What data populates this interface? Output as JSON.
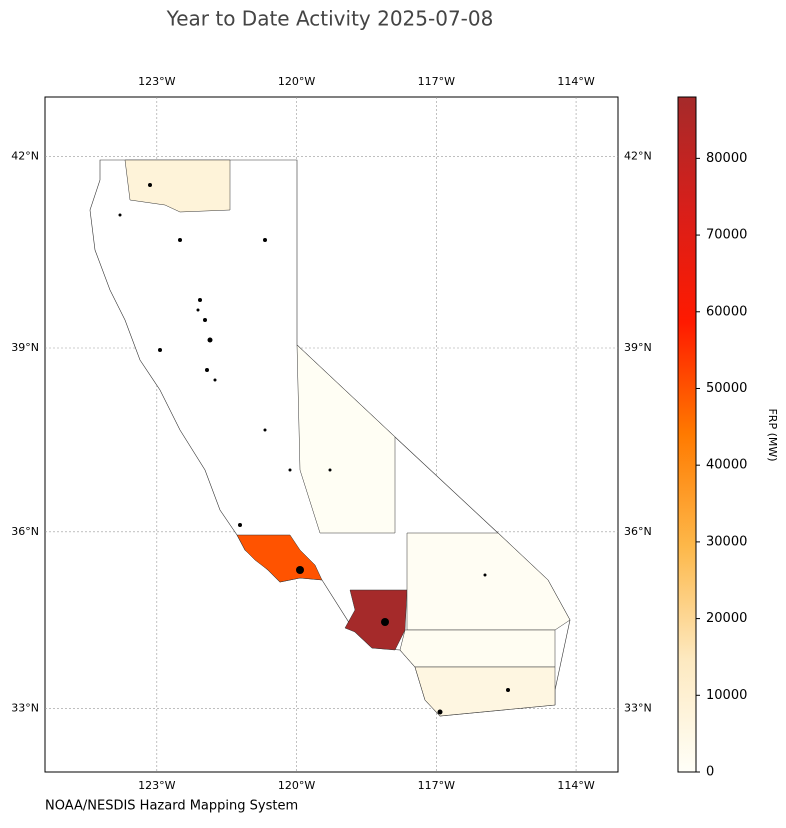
{
  "chart_data": {
    "type": "choropleth-map",
    "title": "Year to Date Activity 2025-07-08",
    "source": "NOAA/NESDIS Hazard Mapping System",
    "colorbar_label": "FRP (MW)",
    "xlim": [
      -125.4,
      -113.1
    ],
    "ylim": [
      31.9,
      42.9
    ],
    "xticks": [
      {
        "value": -123,
        "label": "123°W"
      },
      {
        "value": -120,
        "label": "120°W"
      },
      {
        "value": -117,
        "label": "117°W"
      },
      {
        "value": -114,
        "label": "114°W"
      }
    ],
    "yticks": [
      {
        "value": 33,
        "label": "33°N"
      },
      {
        "value": 36,
        "label": "36°N"
      },
      {
        "value": 39,
        "label": "39°N"
      },
      {
        "value": 42,
        "label": "42°N"
      }
    ],
    "clim": [
      0,
      88000
    ],
    "cticks": [
      0,
      10000,
      20000,
      30000,
      40000,
      50000,
      60000,
      70000,
      80000
    ],
    "colormap": [
      "#fffff8",
      "#fde9c0",
      "#fdb84a",
      "#ff7a00",
      "#ff1a00",
      "#d81f1a",
      "#a52a2a"
    ],
    "grid": true,
    "county_frp": [
      88000,
      50000,
      8000,
      1200,
      1500,
      6000,
      1000
    ]
  }
}
